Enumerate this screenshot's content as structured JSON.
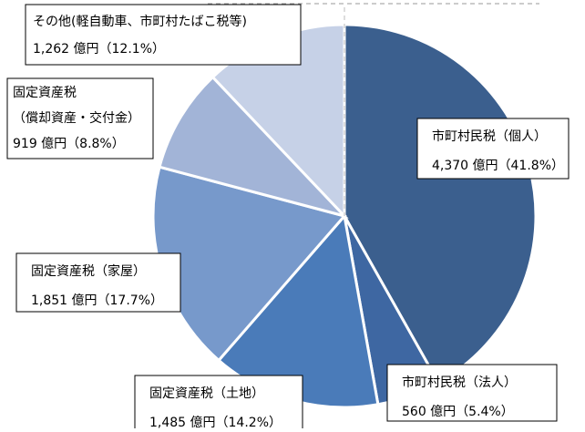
{
  "chart_data": {
    "type": "pie",
    "categories": [
      [
        "市町村民税（個人）"
      ],
      [
        "市町村民税（法人）"
      ],
      [
        "固定資産税（土地）"
      ],
      [
        "固定資産税（家屋）"
      ],
      [
        "固定資産税",
        "（償却資産・交付金）"
      ],
      [
        "その他(軽自動車、市町村たばこ税等)"
      ]
    ],
    "values": [
      4370,
      560,
      1485,
      1851,
      919,
      1262
    ],
    "value_labels": [
      "4,370 億円（41.8%）",
      "560 億円（5.4%）",
      "1,485 億円（14.2%）",
      "1,851 億円（17.7%）",
      "919 億円（8.8%）",
      "1,262 億円（12.1%）"
    ],
    "colors": [
      "#3b5f8e",
      "#3e67a2",
      "#4a7bb9",
      "#7799cb",
      "#a2b4d7",
      "#c6d1e7"
    ]
  }
}
